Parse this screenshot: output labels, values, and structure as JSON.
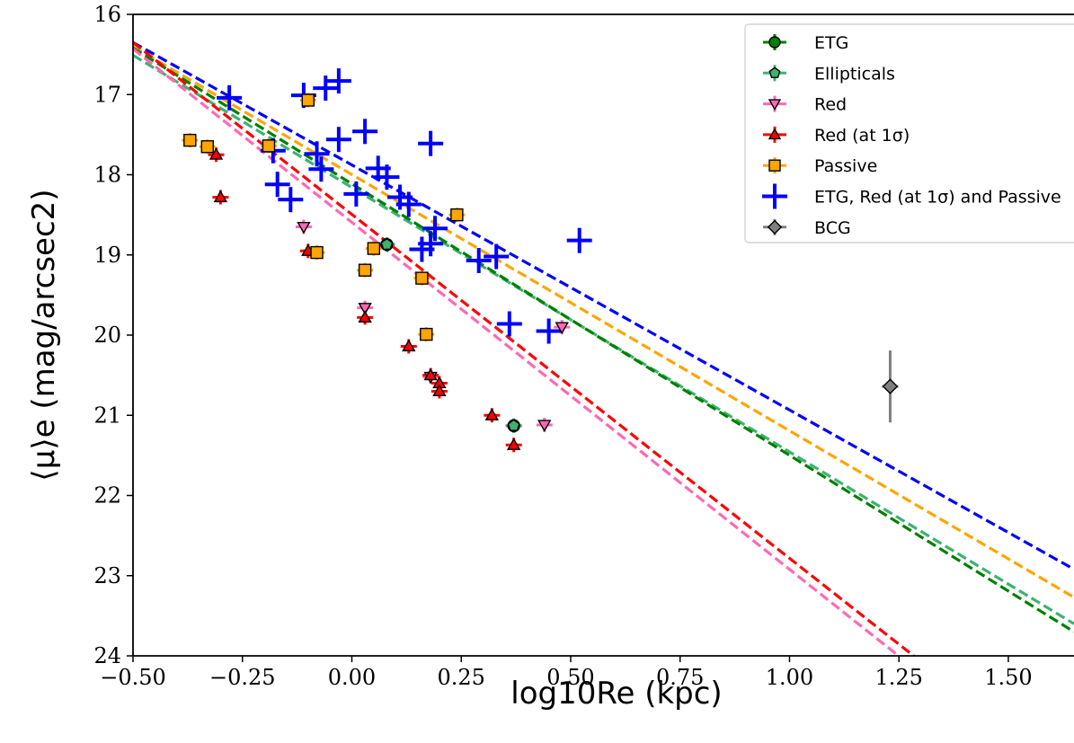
{
  "chart_data": {
    "type": "scatter",
    "xlabel": "log10Re (kpc)",
    "ylabel": "⟨μ⟩e (mag/arcsec2)",
    "xlim": [
      -0.5,
      1.65
    ],
    "ylim": [
      24,
      16
    ],
    "y_inverted": true,
    "x_ticks": [
      "−0.50",
      "−0.25",
      "0.00",
      "0.25",
      "0.50",
      "0.75",
      "1.00",
      "1.25",
      "1.50"
    ],
    "y_ticks": [
      "16",
      "17",
      "18",
      "19",
      "20",
      "21",
      "22",
      "23",
      "24"
    ],
    "grid": false,
    "legend_position": "top-right",
    "series": [
      {
        "name": "ETG",
        "color": "#008000",
        "marker": "circle",
        "points": [
          [
            0.08,
            18.87
          ],
          [
            0.37,
            21.13
          ]
        ]
      },
      {
        "name": "Ellipticals",
        "color": "#3cb371",
        "marker": "pentagon",
        "points": [
          [
            0.08,
            18.87
          ],
          [
            0.37,
            21.13
          ]
        ]
      },
      {
        "name": "Red",
        "color": "#ff69b4",
        "marker": "triangle-down",
        "points": [
          [
            -0.11,
            18.65
          ],
          [
            0.03,
            19.66
          ],
          [
            0.18,
            20.52
          ],
          [
            0.44,
            21.12
          ],
          [
            0.48,
            19.9
          ]
        ]
      },
      {
        "name": "Red (at 1σ)",
        "color": "#ff0000",
        "marker": "triangle-up",
        "points": [
          [
            -0.31,
            17.75
          ],
          [
            -0.3,
            18.28
          ],
          [
            -0.1,
            18.95
          ],
          [
            0.03,
            19.78
          ],
          [
            0.13,
            20.14
          ],
          [
            0.18,
            20.5
          ],
          [
            0.2,
            20.6
          ],
          [
            0.2,
            20.7
          ],
          [
            0.32,
            21.0
          ],
          [
            0.37,
            21.37
          ]
        ]
      },
      {
        "name": "Passive",
        "color": "#ffa500",
        "marker": "square",
        "points": [
          [
            -0.37,
            17.57
          ],
          [
            -0.33,
            17.65
          ],
          [
            -0.19,
            17.64
          ],
          [
            -0.1,
            17.07
          ],
          [
            -0.08,
            18.97
          ],
          [
            0.03,
            19.19
          ],
          [
            0.05,
            18.92
          ],
          [
            0.16,
            19.29
          ],
          [
            0.17,
            19.99
          ],
          [
            0.24,
            18.5
          ]
        ]
      },
      {
        "name": "ETG, Red (at 1σ) and Passive",
        "color": "#0000ff",
        "marker": "cross",
        "points": [
          [
            -0.28,
            17.04
          ],
          [
            -0.18,
            17.7
          ],
          [
            -0.17,
            18.12
          ],
          [
            -0.14,
            18.31
          ],
          [
            -0.11,
            17.01
          ],
          [
            -0.08,
            17.74
          ],
          [
            -0.07,
            17.93
          ],
          [
            -0.06,
            16.92
          ],
          [
            -0.03,
            16.83
          ],
          [
            -0.03,
            17.56
          ],
          [
            0.01,
            18.24
          ],
          [
            0.03,
            17.46
          ],
          [
            0.06,
            17.92
          ],
          [
            0.08,
            18.03
          ],
          [
            0.11,
            18.28
          ],
          [
            0.13,
            18.37
          ],
          [
            0.16,
            18.93
          ],
          [
            0.18,
            18.86
          ],
          [
            0.18,
            17.61
          ],
          [
            0.19,
            18.67
          ],
          [
            0.29,
            19.07
          ],
          [
            0.33,
            19.02
          ],
          [
            0.36,
            19.86
          ],
          [
            0.45,
            19.95
          ],
          [
            0.52,
            18.82
          ]
        ]
      },
      {
        "name": "BCG",
        "color": "#808080",
        "marker": "diamond",
        "points": [
          [
            1.23,
            20.64
          ]
        ]
      }
    ],
    "fit_lines": [
      {
        "color": "#0000ff",
        "x": [
          -0.5,
          1.65
        ],
        "y": [
          16.35,
          22.92
        ]
      },
      {
        "color": "#ffa500",
        "x": [
          -0.5,
          1.65
        ],
        "y": [
          16.4,
          23.27
        ]
      },
      {
        "color": "#3cb371",
        "x": [
          -0.5,
          1.65
        ],
        "y": [
          16.51,
          23.6
        ]
      },
      {
        "color": "#008000",
        "x": [
          -0.5,
          1.65
        ],
        "y": [
          16.42,
          23.7
        ]
      },
      {
        "color": "#ff69b4",
        "x": [
          -0.5,
          1.3
        ],
        "y": [
          16.43,
          24.22
        ]
      },
      {
        "color": "#ff0000",
        "x": [
          -0.5,
          1.3
        ],
        "y": [
          16.35,
          24.07
        ]
      }
    ]
  }
}
